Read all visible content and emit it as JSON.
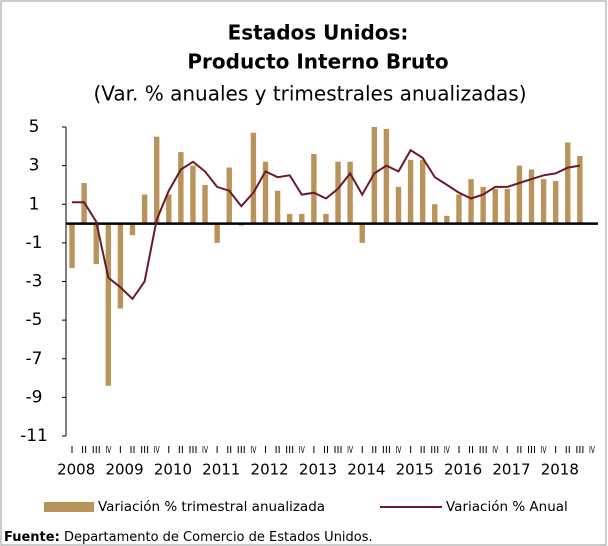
{
  "chart_data": {
    "type": "bar",
    "title": [
      "Estados Unidos:",
      "Producto Interno Bruto"
    ],
    "subtitle": "(Var. % anuales y trimestrales anualizadas)",
    "categories": [
      "I",
      "II",
      "III",
      "IV",
      "I",
      "II",
      "III",
      "IV",
      "I",
      "II",
      "III",
      "IV",
      "I",
      "II",
      "III",
      "IV",
      "I",
      "II",
      "III",
      "IV",
      "I",
      "II",
      "III",
      "IV",
      "I",
      "II",
      "III",
      "IV",
      "I",
      "II",
      "III",
      "IV",
      "I",
      "II",
      "III",
      "IV",
      "I",
      "II",
      "III",
      "IV",
      "I",
      "II",
      "III",
      "IV"
    ],
    "years": [
      "2008",
      "2009",
      "2010",
      "2011",
      "2012",
      "2013",
      "2014",
      "2015",
      "2016",
      "2017",
      "2018"
    ],
    "series": [
      {
        "name": "Variación % trimestral anualizada",
        "type": "bar",
        "color": "#b8935a",
        "values": [
          -2.3,
          2.1,
          -2.1,
          -8.4,
          -4.4,
          -0.6,
          1.5,
          4.5,
          1.5,
          3.7,
          3.0,
          2.0,
          -1.0,
          2.9,
          -0.1,
          4.7,
          3.2,
          1.7,
          0.5,
          0.5,
          3.6,
          0.5,
          3.2,
          3.2,
          -1.0,
          5.0,
          4.9,
          1.9,
          3.3,
          3.3,
          1.0,
          0.4,
          1.5,
          2.3,
          1.9,
          1.8,
          1.8,
          3.0,
          2.8,
          2.3,
          2.2,
          4.2,
          3.5,
          null
        ]
      },
      {
        "name": "Variación % Anual",
        "type": "line",
        "color": "#6b1a2e",
        "values": [
          1.1,
          1.1,
          0.1,
          -2.8,
          -3.3,
          -3.9,
          -3.0,
          0.2,
          1.7,
          2.8,
          3.2,
          2.7,
          1.9,
          1.7,
          0.9,
          1.6,
          2.7,
          2.4,
          2.5,
          1.5,
          1.6,
          1.3,
          1.8,
          2.6,
          1.5,
          2.6,
          3.0,
          2.7,
          3.8,
          3.4,
          2.4,
          2.0,
          1.6,
          1.3,
          1.5,
          1.9,
          1.9,
          2.1,
          2.3,
          2.5,
          2.6,
          2.9,
          3.0,
          null
        ]
      }
    ],
    "ylim": [
      -11,
      5
    ],
    "yticks": [
      5,
      3,
      1,
      -1,
      -3,
      -5,
      -7,
      -9,
      -11
    ],
    "source_label": "Fuente:",
    "source": "Departamento de Comercio de Estados Unidos."
  }
}
